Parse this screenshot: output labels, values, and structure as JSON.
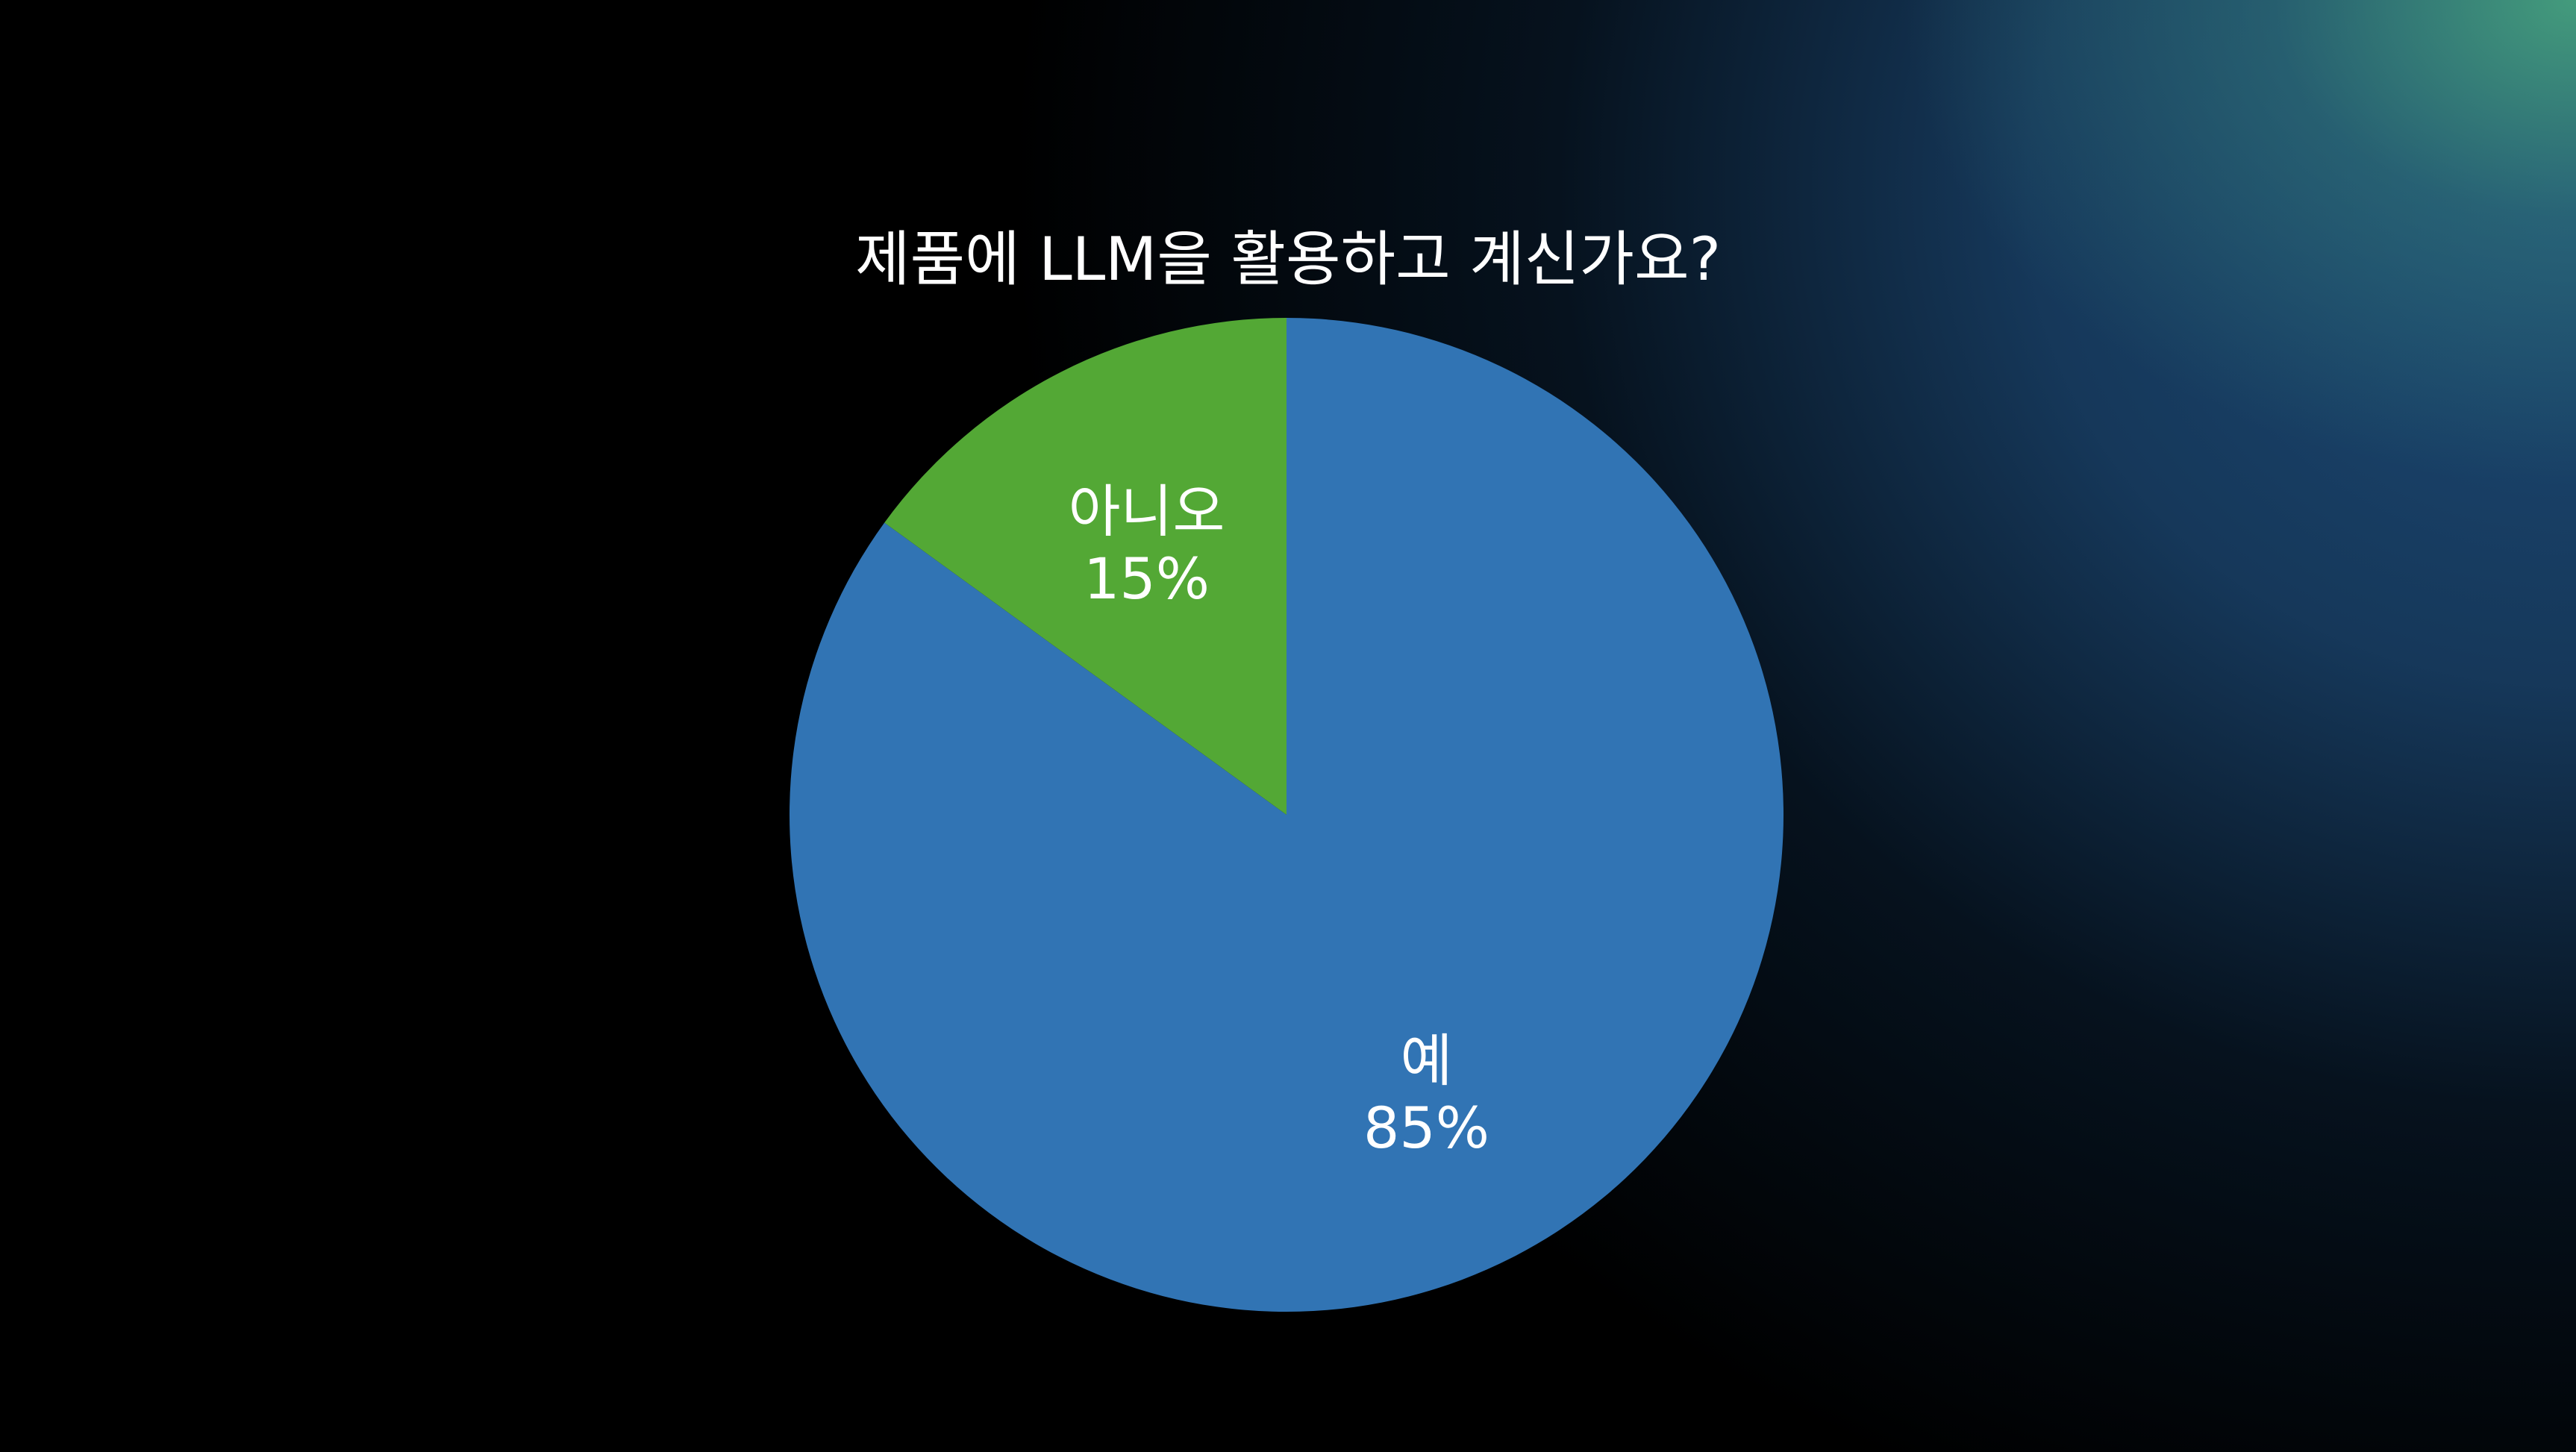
{
  "chart_data": {
    "type": "pie",
    "title": "제품에 LLM을 활용하고 계신가요?",
    "slices": [
      {
        "label": "예",
        "value": 85,
        "value_label": "85%",
        "color": "#3174b4"
      },
      {
        "label": "아니오",
        "value": 15,
        "value_label": "15%",
        "color": "#53a835"
      }
    ],
    "start": "12 o'clock",
    "direction": "clockwise",
    "legend": "none"
  }
}
